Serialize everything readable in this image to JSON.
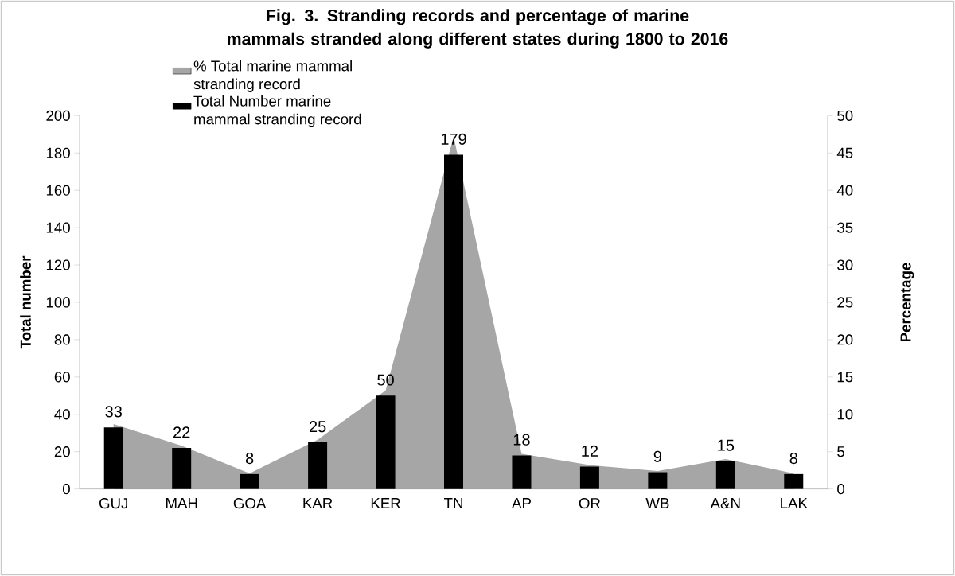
{
  "chart_data": {
    "type": "bar",
    "title": "Fig. 3. Stranding records and percentage of marine mammals stranded along different states during 1800 to 2016",
    "categories": [
      "GUJ",
      "MAH",
      "GOA",
      "KAR",
      "KER",
      "TN",
      "AP",
      "OR",
      "WB",
      "A&N",
      "LAK"
    ],
    "series": [
      {
        "name": "% Total marine mammal stranding record",
        "type": "area",
        "axis": "y2",
        "color": "#a6a6a6",
        "values": [
          8.7,
          5.8,
          2.1,
          6.6,
          13.2,
          47.2,
          4.7,
          3.2,
          2.4,
          4.0,
          2.1
        ]
      },
      {
        "name": "Total Number marine mammal stranding record",
        "type": "bar",
        "color": "#000000",
        "values": [
          33,
          22,
          8,
          25,
          50,
          179,
          18,
          12,
          9,
          15,
          8
        ],
        "value_labels": [
          "33",
          "22",
          "8",
          "25",
          "50",
          "179",
          "18",
          "12",
          "9",
          "15",
          "8"
        ]
      }
    ],
    "ylabel": "Total number",
    "y2label": "Percentage",
    "ylim": [
      0,
      200
    ],
    "yticks": [
      0,
      20,
      40,
      60,
      80,
      100,
      120,
      140,
      160,
      180,
      200
    ],
    "y2lim": [
      0,
      50
    ],
    "y2ticks": [
      0,
      5,
      10,
      15,
      20,
      25,
      30,
      35,
      40,
      45,
      50
    ],
    "legend": "top left",
    "grid": false
  }
}
